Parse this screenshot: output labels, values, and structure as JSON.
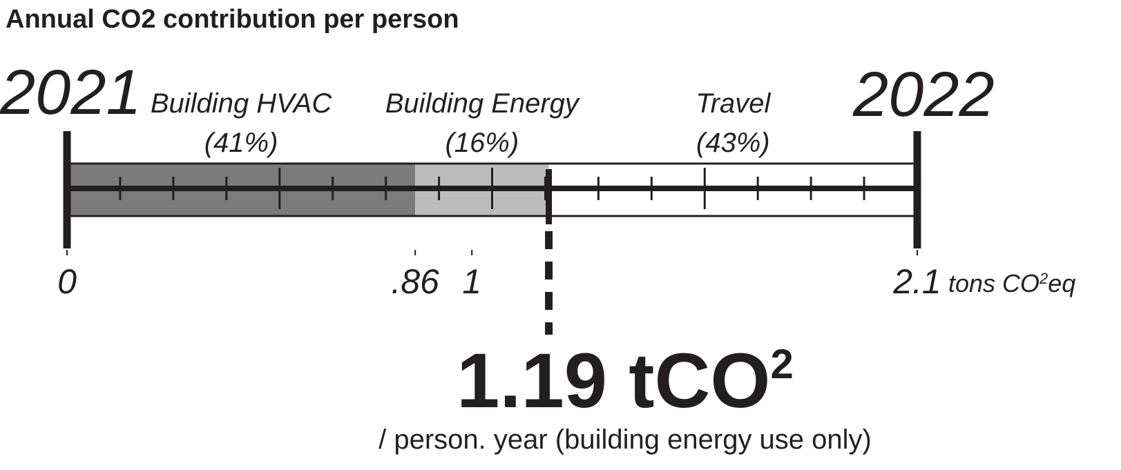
{
  "chart_data": {
    "type": "stacked-bar",
    "orientation": "horizontal",
    "title": "Annual CO2 contribution per person",
    "start_label": "2021",
    "end_label": "2022",
    "series": [
      {
        "name": "Building HVAC",
        "color": "#7b7b7b",
        "values": [
          0.86
        ],
        "share": 41,
        "share_label": "(41%)"
      },
      {
        "name": "Building Energy",
        "color": "#bcbcbc",
        "values": [
          0.33
        ],
        "share": 16,
        "share_label": "(16%)"
      },
      {
        "name": "Travel",
        "color": "#ffffff",
        "values": [
          0.91
        ],
        "share": 43,
        "share_label": "(43%)"
      }
    ],
    "xlim": [
      0,
      2.1
    ],
    "xticks": [
      0,
      {
        "value": 0.86,
        "label": ".86"
      },
      1,
      2.1
    ],
    "x_unit": "tons CO",
    "x_unit_sup": "2",
    "x_unit_suffix": "eq",
    "marker_value": 1.19,
    "marker_label": "1.19 tCO",
    "marker_label_sup": "2",
    "marker_note": "/ person. year (building energy use only)"
  }
}
